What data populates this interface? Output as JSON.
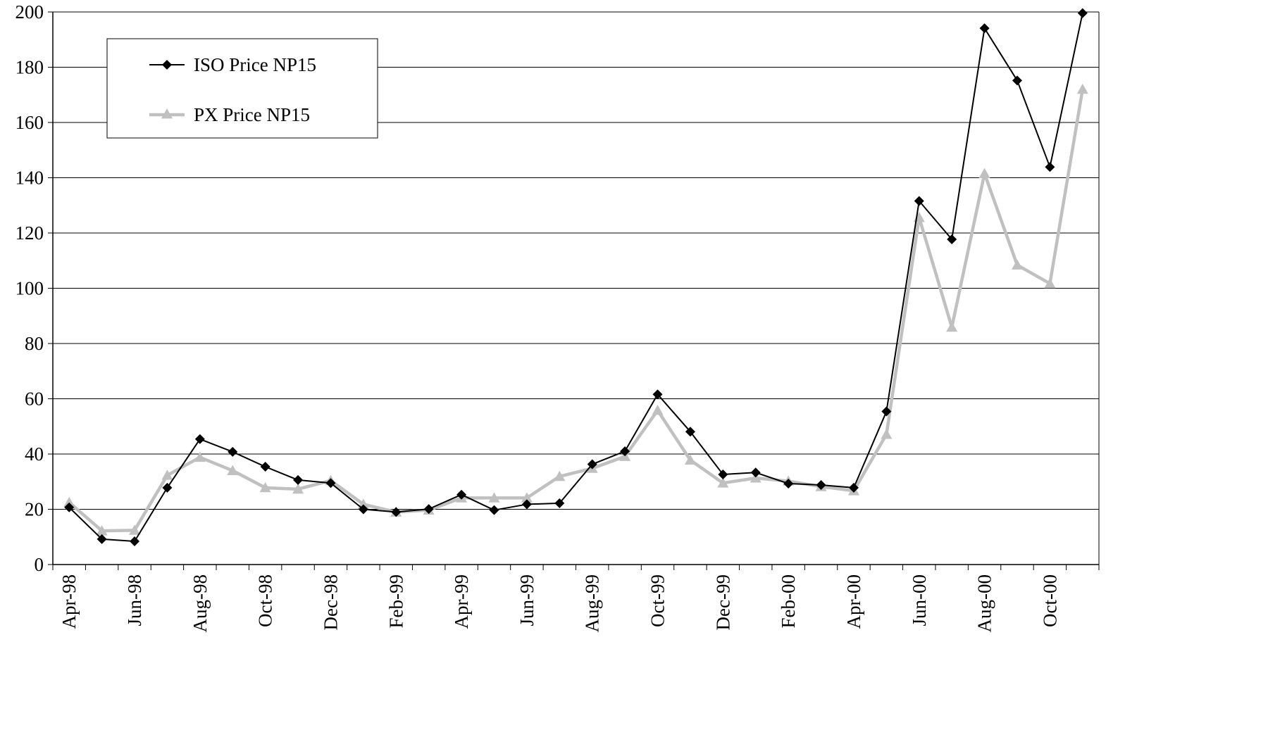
{
  "chart_data": {
    "type": "line",
    "title": "",
    "xlabel": "",
    "ylabel": "",
    "ylim": [
      0,
      200
    ],
    "yticks": [
      0,
      20,
      40,
      60,
      80,
      100,
      120,
      140,
      160,
      180,
      200
    ],
    "grid": "horizontal",
    "legend_position": "top-left",
    "x": [
      "Apr-98",
      "May-98",
      "Jun-98",
      "Jul-98",
      "Aug-98",
      "Sep-98",
      "Oct-98",
      "Nov-98",
      "Dec-98",
      "Jan-99",
      "Feb-99",
      "Mar-99",
      "Apr-99",
      "May-99",
      "Jun-99",
      "Jul-99",
      "Aug-99",
      "Sep-99",
      "Oct-99",
      "Nov-99",
      "Dec-99",
      "Jan-00",
      "Feb-00",
      "Mar-00",
      "Apr-00",
      "May-00",
      "Jun-00",
      "Jul-00",
      "Aug-00",
      "Sep-00",
      "Oct-00",
      "Nov-00"
    ],
    "x_tick_labels": [
      "Apr-98",
      "Jun-98",
      "Aug-98",
      "Oct-98",
      "Dec-98",
      "Feb-99",
      "Apr-99",
      "Jun-99",
      "Aug-99",
      "Oct-99",
      "Dec-99",
      "Feb-00",
      "Apr-00",
      "Jun-00",
      "Aug-00",
      "Oct-00"
    ],
    "series": [
      {
        "name": "ISO Price NP15",
        "color": "#000000",
        "marker": "diamond",
        "values": [
          20.7,
          9.2,
          8.4,
          27.8,
          45.4,
          40.8,
          35.4,
          30.6,
          29.5,
          20.0,
          19.0,
          20.1,
          25.3,
          19.7,
          21.8,
          22.2,
          36.3,
          41.0,
          61.6,
          48.1,
          32.6,
          33.3,
          29.3,
          28.8,
          27.8,
          55.4,
          131.6,
          117.7,
          194.1,
          175.2,
          143.9,
          199.6
        ]
      },
      {
        "name": "PX Price NP15",
        "color": "#c0c0c0",
        "marker": "triangle",
        "values": [
          22.5,
          12.2,
          12.4,
          32.3,
          38.8,
          34.0,
          27.8,
          27.3,
          30.4,
          21.8,
          19.0,
          19.7,
          24.1,
          24.1,
          24.1,
          31.9,
          34.8,
          39.1,
          55.8,
          37.8,
          29.5,
          31.3,
          30.2,
          28.2,
          26.7,
          47.1,
          125.6,
          85.9,
          141.5,
          108.4,
          101.7,
          172.0
        ]
      }
    ]
  }
}
